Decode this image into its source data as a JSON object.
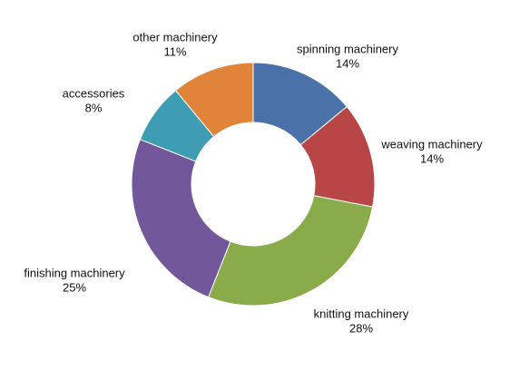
{
  "chart_data": {
    "type": "donut",
    "categories": [
      "spinning machinery",
      "weaving machinery",
      "knitting machinery",
      "finishing machinery",
      "accessories",
      "other machinery"
    ],
    "values": [
      14,
      14,
      28,
      25,
      8,
      11
    ],
    "value_labels": [
      "14%",
      "14%",
      "28%",
      "25%",
      "8%",
      "11%"
    ],
    "colors": [
      "#4a72a8",
      "#b94646",
      "#8aab4a",
      "#72589a",
      "#3f9db3",
      "#e0843a"
    ]
  }
}
